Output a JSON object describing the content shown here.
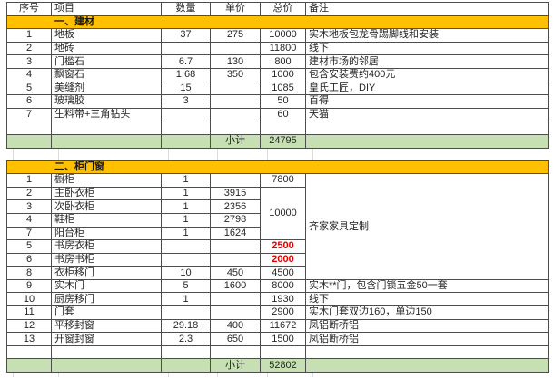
{
  "columns": [
    {
      "key": "seq",
      "label": "序号"
    },
    {
      "key": "item",
      "label": "项目"
    },
    {
      "key": "qty",
      "label": "数量"
    },
    {
      "key": "unit",
      "label": "单价"
    },
    {
      "key": "total",
      "label": "总价"
    },
    {
      "key": "note",
      "label": "备注"
    }
  ],
  "subtotal_label": "小计",
  "colors": {
    "section_header_bg": "#FFC000",
    "subtotal_bg": "#C6E0B4",
    "highlight_red": "#E00000",
    "grid": "#4D4D4D"
  },
  "sections": [
    {
      "title": "一、建材",
      "rows": [
        {
          "seq": "1",
          "item": "地板",
          "qty": "37",
          "unit": "275",
          "total": "10000",
          "note": "实木地板包龙骨踢脚线和安装"
        },
        {
          "seq": "2",
          "item": "地砖",
          "qty": "",
          "unit": "",
          "total": "11800",
          "note": "线下"
        },
        {
          "seq": "3",
          "item": "门槛石",
          "qty": "6.7",
          "unit": "130",
          "total": "800",
          "note": "建材市场的邻居"
        },
        {
          "seq": "4",
          "item": "飘窗石",
          "qty": "1.68",
          "unit": "350",
          "total": "1000",
          "note": "包含安装费约400元"
        },
        {
          "seq": "5",
          "item": "美缝剂",
          "qty": "15",
          "unit": "",
          "total": "1085",
          "note": "皇氏工匠，DIY"
        },
        {
          "seq": "6",
          "item": "玻璃胶",
          "qty": "3",
          "unit": "",
          "total": "50",
          "note": "百得"
        },
        {
          "seq": "7",
          "item": "生料带+三角钻头",
          "qty": "",
          "unit": "",
          "total": "60",
          "note": "天猫"
        },
        {
          "seq": "",
          "item": "",
          "qty": "",
          "unit": "",
          "total": "",
          "note": ""
        }
      ],
      "subtotal": "24795"
    },
    {
      "title": "二、柜门窗",
      "rows": [
        {
          "seq": "1",
          "item": "橱柜",
          "qty": "1",
          "unit": "",
          "total": "7800",
          "note": {
            "text": "齐家家具定制",
            "rowspan": 8
          }
        },
        {
          "seq": "2",
          "item": "主卧衣柜",
          "qty": "1",
          "unit": "3915",
          "total": {
            "text": "10000",
            "rowspan": 4
          },
          "note": null
        },
        {
          "seq": "3",
          "item": "次卧衣柜",
          "qty": "1",
          "unit": "2356",
          "total": null,
          "note": null
        },
        {
          "seq": "4",
          "item": "鞋柜",
          "qty": "1",
          "unit": "2798",
          "total": null,
          "note": null
        },
        {
          "seq": "7",
          "item": "阳台柜",
          "qty": "1",
          "unit": "1624",
          "total": null,
          "note": null
        },
        {
          "seq": "5",
          "item": "书房衣柜",
          "qty": "",
          "unit": "",
          "total": {
            "text": "2500",
            "red": true
          },
          "note": null
        },
        {
          "seq": "6",
          "item": "书房书柜",
          "qty": "",
          "unit": "",
          "total": {
            "text": "2000",
            "red": true
          },
          "note": null
        },
        {
          "seq": "8",
          "item": "衣柜移门",
          "qty": "10",
          "unit": "450",
          "total": "4500",
          "note": null
        },
        {
          "seq": "9",
          "item": "实木门",
          "qty": "5",
          "unit": "1600",
          "total": "8000",
          "note": "实木**门，包含门锁五金50一套"
        },
        {
          "seq": "10",
          "item": "厨房移门",
          "qty": "1",
          "unit": "",
          "total": "1930",
          "note": "线下"
        },
        {
          "seq": "11",
          "item": "门套",
          "qty": "",
          "unit": "",
          "total": "2900",
          "note": "实木门套双边160，单边150"
        },
        {
          "seq": "12",
          "item": "平移封窗",
          "qty": "29.18",
          "unit": "400",
          "total": "11672",
          "note": "凤铝断桥铝"
        },
        {
          "seq": "13",
          "item": "开窗封窗",
          "qty": "2.3",
          "unit": "650",
          "total": "1500",
          "note": "凤铝断桥铝"
        },
        {
          "seq": "",
          "item": "",
          "qty": "",
          "unit": "",
          "total": "",
          "note": ""
        }
      ],
      "subtotal": "52802"
    }
  ]
}
